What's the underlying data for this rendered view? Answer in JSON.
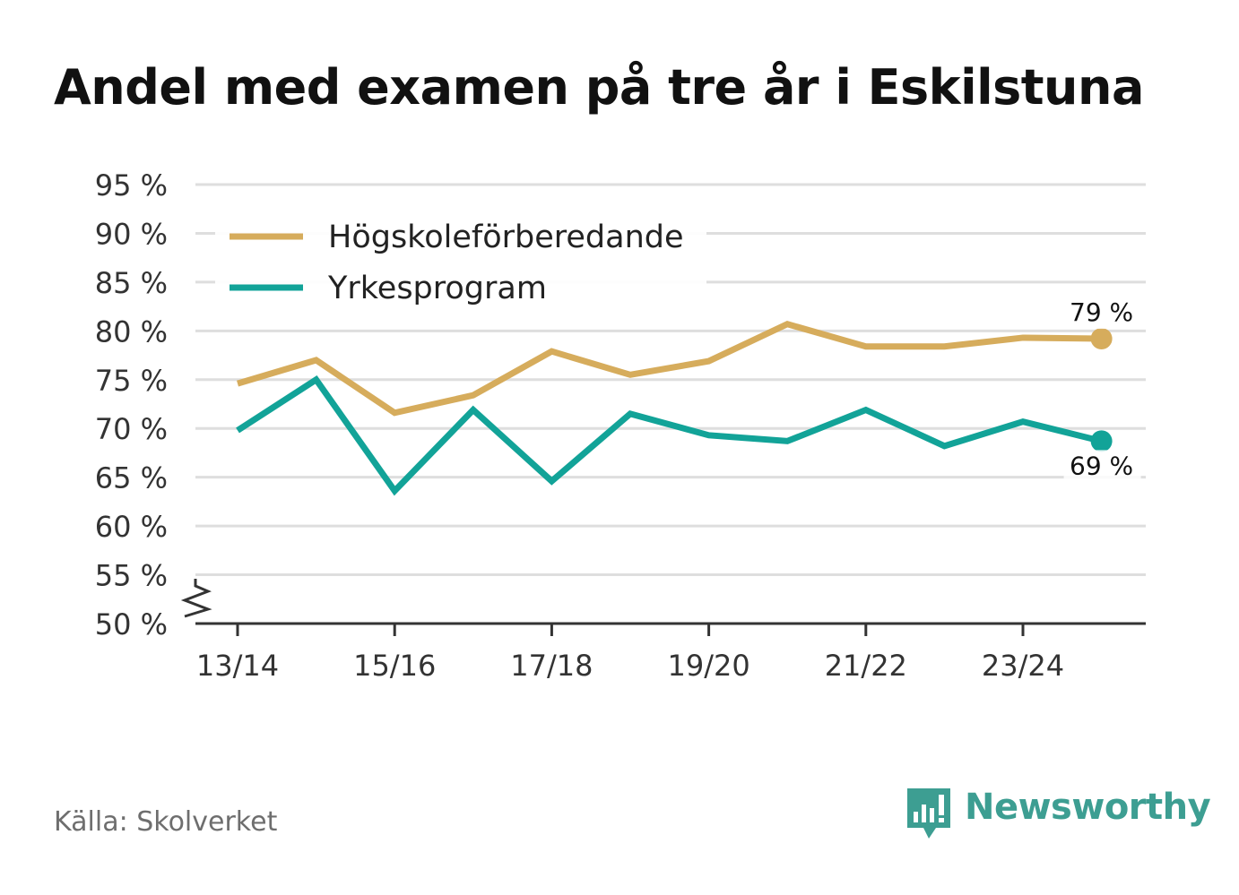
{
  "title": "Andel med examen på tre år i Eskilstuna",
  "source": "Källa: Skolverket",
  "brand": {
    "name": "Newsworthy",
    "icon": "newsworthy-logo-icon"
  },
  "colors": {
    "hogskole": "#d6ac5c",
    "yrke": "#12a398",
    "grid": "#dedede",
    "axis": "#333333",
    "tick_text": "#333333",
    "brand": "#3d9e92"
  },
  "chart_data": {
    "type": "line",
    "title": "Andel med examen på tre år i Eskilstuna",
    "xlabel": "",
    "ylabel": "",
    "x": [
      "13/14",
      "14/15",
      "15/16",
      "16/17",
      "17/18",
      "18/19",
      "19/20",
      "20/21",
      "21/22",
      "22/23",
      "23/24",
      "24/25"
    ],
    "x_tick_labels": [
      "13/14",
      "15/16",
      "17/18",
      "19/20",
      "21/22",
      "23/24"
    ],
    "y_ticks": [
      50,
      55,
      60,
      65,
      70,
      75,
      80,
      85,
      90,
      95
    ],
    "y_tick_labels": [
      "50 %",
      "55 %",
      "60 %",
      "65 %",
      "70 %",
      "75 %",
      "80 %",
      "85 %",
      "90 %",
      "95 %"
    ],
    "ylim": [
      50,
      95
    ],
    "y_axis_break": true,
    "grid": true,
    "legend_position": "top-left",
    "series": [
      {
        "name": "Högskoleförberedande",
        "color": "#d6ac5c",
        "values": [
          74.6,
          77.0,
          71.6,
          73.4,
          77.9,
          75.5,
          76.9,
          80.7,
          78.4,
          78.4,
          79.3,
          79.2
        ],
        "end_label": "79 %",
        "end_label_placement": "above"
      },
      {
        "name": "Yrkesprogram",
        "color": "#12a398",
        "values": [
          69.8,
          75.0,
          63.6,
          71.9,
          64.6,
          71.5,
          69.3,
          68.7,
          71.9,
          68.2,
          70.7,
          68.7
        ],
        "end_label": "69 %",
        "end_label_placement": "below"
      }
    ]
  }
}
